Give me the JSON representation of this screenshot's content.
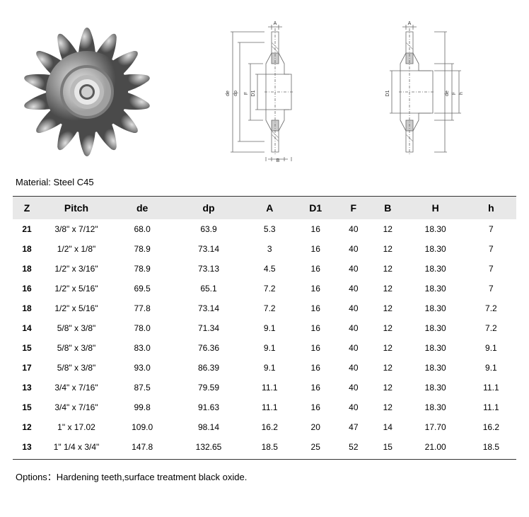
{
  "material": "Material: Steel C45",
  "options": "Options：Hardening teeth,surface treatment black oxide.",
  "table": {
    "columns": [
      "Z",
      "Pitch",
      "de",
      "dp",
      "A",
      "D1",
      "F",
      "B",
      "H",
      "h"
    ],
    "rows": [
      [
        "21",
        "3/8\" x 7/12\"",
        "68.0",
        "63.9",
        "5.3",
        "16",
        "40",
        "12",
        "18.30",
        "7"
      ],
      [
        "18",
        "1/2\" x 1/8\"",
        "78.9",
        "73.14",
        "3",
        "16",
        "40",
        "12",
        "18.30",
        "7"
      ],
      [
        "18",
        "1/2\" x 3/16\"",
        "78.9",
        "73.13",
        "4.5",
        "16",
        "40",
        "12",
        "18.30",
        "7"
      ],
      [
        "16",
        "1/2\" x 5/16\"",
        "69.5",
        "65.1",
        "7.2",
        "16",
        "40",
        "12",
        "18.30",
        "7"
      ],
      [
        "18",
        "1/2\" x 5/16\"",
        "77.8",
        "73.14",
        "7.2",
        "16",
        "40",
        "12",
        "18.30",
        "7.2"
      ],
      [
        "14",
        "5/8\" x 3/8\"",
        "78.0",
        "71.34",
        "9.1",
        "16",
        "40",
        "12",
        "18.30",
        "7.2"
      ],
      [
        "15",
        "5/8\" x 3/8\"",
        "83.0",
        "76.36",
        "9.1",
        "16",
        "40",
        "12",
        "18.30",
        "9.1"
      ],
      [
        "17",
        "5/8\" x 3/8\"",
        "93.0",
        "86.39",
        "9.1",
        "16",
        "40",
        "12",
        "18.30",
        "9.1"
      ],
      [
        "13",
        "3/4\" x 7/16\"",
        "87.5",
        "79.59",
        "11.1",
        "16",
        "40",
        "12",
        "18.30",
        "11.1"
      ],
      [
        "15",
        "3/4\" x 7/16\"",
        "99.8",
        "91.63",
        "11.1",
        "16",
        "40",
        "12",
        "18.30",
        "11.1"
      ],
      [
        "12",
        "1\" x 17.02",
        "109.0",
        "98.14",
        "16.2",
        "20",
        "47",
        "14",
        "17.70",
        "16.2"
      ],
      [
        "13",
        "1\" 1/4 x 3/4\"",
        "147.8",
        "132.65",
        "18.5",
        "25",
        "52",
        "15",
        "21.00",
        "18.5"
      ]
    ]
  },
  "diagram_labels": [
    "A",
    "de",
    "dp",
    "F",
    "D1",
    "B",
    "H",
    "h"
  ],
  "sprocket": {
    "teeth": 14,
    "outer_color": "#6b6b6b",
    "mid_color": "#9a9a9a",
    "hub_color": "#d0d0d0",
    "bore_color": "#8a8a8a"
  },
  "colors": {
    "header_bg": "#e8e8e8",
    "border": "#333333",
    "text": "#000000",
    "diagram_stroke": "#666666",
    "diagram_hatch": "#999999"
  }
}
